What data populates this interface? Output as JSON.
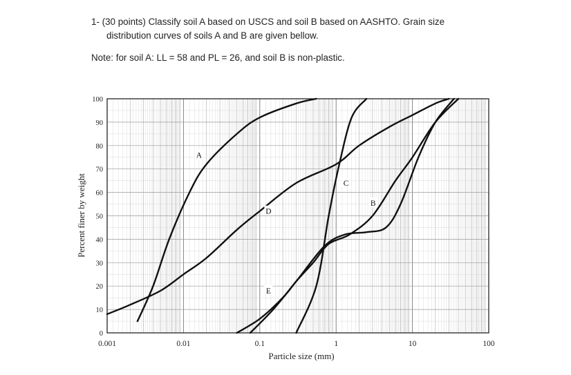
{
  "question": {
    "line1": "1- (30 points) Classify soil A based on USCS and soil B based on AASHTO. Grain size",
    "line2": "distribution curves of soils A and B are given bellow.",
    "note": "Note: for soil A: LL = 58 and PL = 26, and soil B is non-plastic."
  },
  "chart_data": {
    "type": "line",
    "xlabel": "Particle size (mm)",
    "ylabel": "Percent finer by weight",
    "xscale": "log",
    "xlim": [
      0.001,
      100
    ],
    "ylim": [
      0,
      100
    ],
    "x_ticks": [
      "0.001",
      "0.01",
      "0.1",
      "1",
      "10",
      "100"
    ],
    "y_ticks": [
      "0",
      "10",
      "20",
      "30",
      "40",
      "50",
      "60",
      "70",
      "80",
      "90",
      "100"
    ],
    "grid": true,
    "series": [
      {
        "name": "A",
        "points": [
          [
            0.0025,
            5
          ],
          [
            0.004,
            20
          ],
          [
            0.0065,
            40
          ],
          [
            0.012,
            60
          ],
          [
            0.02,
            72
          ],
          [
            0.05,
            85
          ],
          [
            0.1,
            92
          ],
          [
            0.3,
            98
          ],
          [
            0.55,
            100
          ]
        ]
      },
      {
        "name": "B",
        "points": [
          [
            0.075,
            0
          ],
          [
            0.15,
            10
          ],
          [
            0.3,
            22
          ],
          [
            0.7,
            37
          ],
          [
            1.3,
            42
          ],
          [
            2.5,
            43
          ],
          [
            4.5,
            45
          ],
          [
            7,
            55
          ],
          [
            12,
            75
          ],
          [
            20,
            90
          ],
          [
            35,
            100
          ]
        ]
      },
      {
        "name": "C",
        "points": [
          [
            0.3,
            0
          ],
          [
            0.55,
            20
          ],
          [
            0.8,
            50
          ],
          [
            1.1,
            72
          ],
          [
            1.6,
            92
          ],
          [
            2.5,
            100
          ]
        ]
      },
      {
        "name": "D",
        "points": [
          [
            0.001,
            8
          ],
          [
            0.002,
            12
          ],
          [
            0.005,
            18
          ],
          [
            0.01,
            25
          ],
          [
            0.02,
            32
          ],
          [
            0.05,
            44
          ],
          [
            0.1,
            52
          ],
          [
            0.3,
            64
          ],
          [
            1,
            72
          ],
          [
            2,
            80
          ],
          [
            5,
            88
          ],
          [
            10,
            93
          ],
          [
            20,
            98
          ],
          [
            30,
            100
          ]
        ]
      },
      {
        "name": "E",
        "points": [
          [
            0.05,
            0
          ],
          [
            0.1,
            6
          ],
          [
            0.2,
            15
          ],
          [
            0.3,
            22
          ],
          [
            0.5,
            30
          ],
          [
            0.8,
            38
          ],
          [
            1.5,
            42
          ],
          [
            3,
            50
          ],
          [
            6,
            65
          ],
          [
            10,
            75
          ],
          [
            20,
            90
          ],
          [
            40,
            100
          ]
        ]
      }
    ],
    "curve_labels": [
      {
        "name": "A",
        "x": 0.016,
        "y": 76
      },
      {
        "name": "B",
        "x": 3.05,
        "y": 55.5
      },
      {
        "name": "C",
        "x": 1.35,
        "y": 64
      },
      {
        "name": "D",
        "x": 0.13,
        "y": 52
      },
      {
        "name": "E",
        "x": 0.13,
        "y": 18
      }
    ]
  }
}
